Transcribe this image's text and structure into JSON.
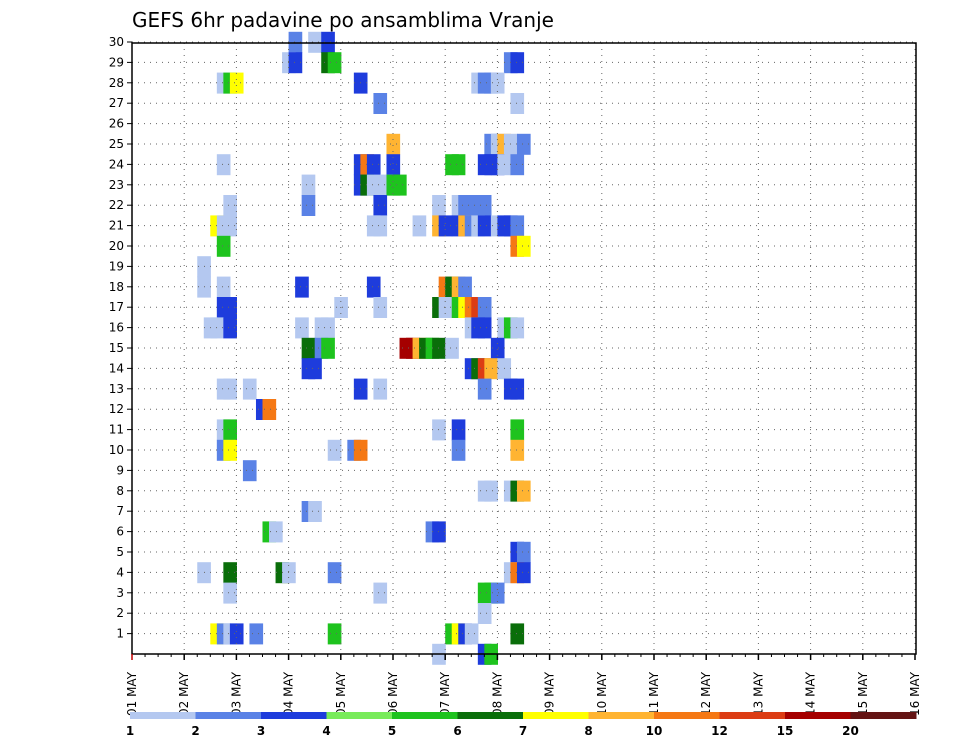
{
  "chart_data": {
    "type": "heatmap",
    "title": "GEFS 6hr padavine po ansamblima Vranje",
    "x_tick_labels": [
      "01 MAY",
      "02 MAY",
      "03 MAY",
      "04 MAY",
      "05 MAY",
      "06 MAY",
      "07 MAY",
      "08 MAY",
      "09 MAY",
      "10 MAY",
      "11 MAY",
      "12 MAY",
      "13 MAY",
      "14 MAY",
      "15 MAY",
      "16 MAY"
    ],
    "y_tick_labels": [
      "1",
      "2",
      "3",
      "4",
      "5",
      "6",
      "7",
      "8",
      "9",
      "10",
      "11",
      "12",
      "13",
      "14",
      "15",
      "16",
      "17",
      "18",
      "19",
      "20",
      "21",
      "22",
      "23",
      "24",
      "25",
      "26",
      "27",
      "28",
      "29",
      "30"
    ],
    "x_unit": "6-hour step",
    "y_range": [
      0,
      30
    ],
    "grid": true,
    "legend": {
      "placement": "bottom",
      "labels": [
        "1",
        "2",
        "3",
        "4",
        "5",
        "6",
        "7",
        "8",
        "10",
        "12",
        "15",
        "20"
      ],
      "colors": [
        "#b4c8f0",
        "#5a82e6",
        "#1e3cdc",
        "#78eb5a",
        "#1ec31e",
        "#0a6e0a",
        "#ffff00",
        "#ffb432",
        "#f57814",
        "#dc3c14",
        "#a50000",
        "#641414"
      ]
    },
    "cells_note": "each cell = [step index from 01 MAY 00z in 6h, member, precipitation mm]",
    "cells": [
      [
        12.5,
        30,
        2
      ],
      [
        14,
        30,
        1
      ],
      [
        15,
        30,
        3
      ],
      [
        12,
        29,
        1
      ],
      [
        12.5,
        29,
        3
      ],
      [
        15,
        29,
        6
      ],
      [
        15.5,
        29,
        5
      ],
      [
        29,
        29,
        2
      ],
      [
        29.5,
        29,
        3
      ],
      [
        7,
        28,
        1
      ],
      [
        7.5,
        28,
        5
      ],
      [
        8,
        28,
        7
      ],
      [
        17.5,
        28,
        3
      ],
      [
        26.5,
        28,
        1
      ],
      [
        27,
        28,
        2
      ],
      [
        27.5,
        28,
        2
      ],
      [
        28,
        28,
        1
      ],
      [
        19,
        27,
        2
      ],
      [
        29.5,
        27,
        1
      ],
      [
        20,
        25,
        9
      ],
      [
        27.5,
        25,
        2
      ],
      [
        28,
        25,
        1
      ],
      [
        28.5,
        25,
        9
      ],
      [
        29,
        25,
        1
      ],
      [
        30,
        25,
        2
      ],
      [
        7,
        24,
        1
      ],
      [
        17.5,
        24,
        3
      ],
      [
        18,
        24,
        10
      ],
      [
        18.5,
        24,
        3
      ],
      [
        20,
        24,
        3
      ],
      [
        24.5,
        24,
        5
      ],
      [
        25,
        24,
        5
      ],
      [
        27,
        24,
        3
      ],
      [
        27.5,
        24,
        3
      ],
      [
        28,
        24,
        3
      ],
      [
        28.5,
        24,
        1
      ],
      [
        29.5,
        24,
        2
      ],
      [
        13.5,
        23,
        1
      ],
      [
        17.5,
        23,
        3
      ],
      [
        18,
        23,
        6
      ],
      [
        18.5,
        23,
        1
      ],
      [
        19.5,
        23,
        1
      ],
      [
        20,
        23,
        5
      ],
      [
        20.5,
        23,
        5
      ],
      [
        7.5,
        22,
        1
      ],
      [
        13.5,
        22,
        2
      ],
      [
        19,
        22,
        3
      ],
      [
        23.5,
        22,
        1
      ],
      [
        25,
        22,
        1
      ],
      [
        25.5,
        22,
        2
      ],
      [
        26.5,
        22,
        2
      ],
      [
        27,
        22,
        2
      ],
      [
        6.5,
        21,
        7
      ],
      [
        7,
        21,
        1
      ],
      [
        7.5,
        21,
        1
      ],
      [
        18.5,
        21,
        1
      ],
      [
        19,
        21,
        1
      ],
      [
        22,
        21,
        1
      ],
      [
        23.5,
        21,
        9
      ],
      [
        24,
        21,
        3
      ],
      [
        25,
        21,
        3
      ],
      [
        25.5,
        21,
        8
      ],
      [
        26,
        21,
        2
      ],
      [
        26.5,
        21,
        1
      ],
      [
        27,
        21,
        3
      ],
      [
        28,
        21,
        1
      ],
      [
        28.5,
        21,
        3
      ],
      [
        29,
        21,
        3
      ],
      [
        29.5,
        21,
        2
      ],
      [
        7,
        20,
        5
      ],
      [
        29.5,
        20,
        10
      ],
      [
        30,
        20,
        7
      ],
      [
        5.5,
        19,
        1
      ],
      [
        5.5,
        18,
        1
      ],
      [
        7,
        18,
        1
      ],
      [
        13,
        18,
        3
      ],
      [
        18.5,
        18,
        3
      ],
      [
        24,
        18,
        10
      ],
      [
        24.5,
        18,
        6
      ],
      [
        25,
        18,
        8
      ],
      [
        25.5,
        18,
        2
      ],
      [
        7,
        17,
        3
      ],
      [
        7.5,
        17,
        3
      ],
      [
        16,
        17,
        1
      ],
      [
        19,
        17,
        1
      ],
      [
        23.5,
        17,
        6
      ],
      [
        24,
        17,
        1
      ],
      [
        24.5,
        17,
        1
      ],
      [
        25,
        17,
        5
      ],
      [
        25.5,
        17,
        7
      ],
      [
        26,
        17,
        10
      ],
      [
        26.5,
        17,
        12
      ],
      [
        27,
        17,
        2
      ],
      [
        6,
        16,
        1
      ],
      [
        6.5,
        16,
        1
      ],
      [
        7.5,
        16,
        3
      ],
      [
        13,
        16,
        1
      ],
      [
        14.5,
        16,
        1
      ],
      [
        15,
        16,
        1
      ],
      [
        26,
        16,
        1
      ],
      [
        26.5,
        16,
        3
      ],
      [
        27,
        16,
        3
      ],
      [
        28.5,
        16,
        1
      ],
      [
        29,
        16,
        5
      ],
      [
        29.5,
        16,
        1
      ],
      [
        13.5,
        15,
        6
      ],
      [
        14.5,
        15,
        2
      ],
      [
        15,
        15,
        5
      ],
      [
        21,
        15,
        15
      ],
      [
        21.5,
        15,
        15
      ],
      [
        22,
        15,
        8
      ],
      [
        22.5,
        15,
        6
      ],
      [
        23,
        15,
        5
      ],
      [
        23.5,
        15,
        6
      ],
      [
        24.5,
        15,
        1
      ],
      [
        28,
        15,
        3
      ],
      [
        13.5,
        14,
        3
      ],
      [
        14,
        14,
        3
      ],
      [
        26,
        14,
        3
      ],
      [
        26.5,
        14,
        6
      ],
      [
        27,
        14,
        12
      ],
      [
        27.5,
        14,
        8
      ],
      [
        28.5,
        14,
        1
      ],
      [
        7,
        13,
        1
      ],
      [
        7.5,
        13,
        1
      ],
      [
        9,
        13,
        1
      ],
      [
        17.5,
        13,
        3
      ],
      [
        19,
        13,
        1
      ],
      [
        27,
        13,
        2
      ],
      [
        29,
        13,
        3
      ],
      [
        29.5,
        13,
        3
      ],
      [
        10,
        12,
        3
      ],
      [
        10.5,
        12,
        10
      ],
      [
        7,
        11,
        1
      ],
      [
        7.5,
        11,
        5
      ],
      [
        23.5,
        11,
        1
      ],
      [
        25,
        11,
        3
      ],
      [
        29.5,
        11,
        5
      ],
      [
        7,
        10,
        2
      ],
      [
        7.5,
        10,
        7
      ],
      [
        15.5,
        10,
        1
      ],
      [
        17,
        10,
        2
      ],
      [
        17.5,
        10,
        10
      ],
      [
        25,
        10,
        2
      ],
      [
        29.5,
        10,
        9
      ],
      [
        9,
        9,
        2
      ],
      [
        27,
        8,
        1
      ],
      [
        27.5,
        8,
        1
      ],
      [
        29,
        8,
        1
      ],
      [
        29.5,
        8,
        6
      ],
      [
        30,
        8,
        8
      ],
      [
        13.5,
        7,
        2
      ],
      [
        14,
        7,
        1
      ],
      [
        10.5,
        6,
        5
      ],
      [
        11,
        6,
        1
      ],
      [
        23,
        6,
        2
      ],
      [
        23.5,
        6,
        3
      ],
      [
        29.5,
        5,
        3
      ],
      [
        30,
        5,
        2
      ],
      [
        5.5,
        4,
        1
      ],
      [
        7.5,
        4,
        6
      ],
      [
        11.5,
        4,
        6
      ],
      [
        12,
        4,
        1
      ],
      [
        15.5,
        4,
        2
      ],
      [
        29,
        4,
        1
      ],
      [
        29.5,
        4,
        10
      ],
      [
        30,
        4,
        3
      ],
      [
        7.5,
        3,
        1
      ],
      [
        19,
        3,
        1
      ],
      [
        27,
        3,
        5
      ],
      [
        27.5,
        3,
        5
      ],
      [
        28,
        3,
        2
      ],
      [
        27,
        2,
        1
      ],
      [
        6.5,
        1,
        7
      ],
      [
        7,
        1,
        2
      ],
      [
        7.5,
        1,
        1
      ],
      [
        8,
        1,
        3
      ],
      [
        9.5,
        1,
        2
      ],
      [
        15.5,
        1,
        5
      ],
      [
        24.5,
        1,
        5
      ],
      [
        25,
        1,
        7
      ],
      [
        25.5,
        1,
        3
      ],
      [
        26,
        1,
        1
      ],
      [
        29.5,
        1,
        6
      ],
      [
        23.5,
        0,
        1
      ],
      [
        27,
        0,
        3
      ],
      [
        27.5,
        0,
        5
      ]
    ]
  }
}
